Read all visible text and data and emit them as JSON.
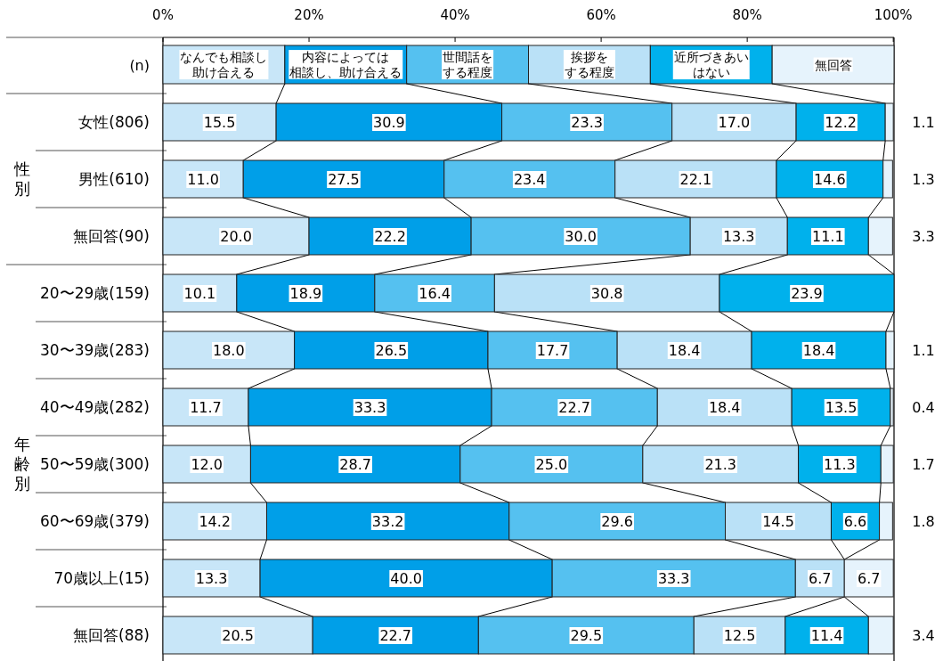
{
  "chart_data": {
    "type": "bar",
    "orientation": "horizontal",
    "stacked": true,
    "categories": [
      "女性(806)",
      "男性(610)",
      "無回答(90)",
      "20〜29歳(159)",
      "30〜39歳(283)",
      "40〜49歳(282)",
      "50〜59歳(300)",
      "60〜69歳(379)",
      "70歳以上(15)",
      "無回答(88)"
    ],
    "series": [
      {
        "name": "なんでも相談し助け合える",
        "color": "#c8e6f8",
        "values": [
          15.5,
          11.0,
          20.0,
          10.1,
          18.0,
          11.7,
          12.0,
          14.2,
          13.3,
          20.5
        ],
        "value_labels": [
          "15.5",
          "11.0",
          "20.0",
          "10.1",
          "18.0",
          "11.7",
          "12.0",
          "14.2",
          "13.3",
          "20.5"
        ]
      },
      {
        "name": "内容によっては相談し、助け合える",
        "color": "#009fe8",
        "values": [
          30.9,
          27.5,
          22.2,
          18.9,
          26.5,
          33.3,
          28.7,
          33.2,
          40.0,
          22.7
        ],
        "value_labels": [
          "30.9",
          "27.5",
          "22.2",
          "18.9",
          "26.5",
          "33.3",
          "28.7",
          "33.2",
          "40.0",
          "22.7"
        ]
      },
      {
        "name": "世間話をする程度",
        "color": "#55c1f0",
        "values": [
          23.3,
          23.4,
          30.0,
          16.4,
          17.7,
          22.7,
          25.0,
          29.6,
          33.3,
          29.5
        ],
        "value_labels": [
          "23.3",
          "23.4",
          "30.0",
          "16.4",
          "17.7",
          "22.7",
          "25.0",
          "29.6",
          "33.3",
          "29.5"
        ]
      },
      {
        "name": "挨拶をする程度",
        "color": "#bae1f7",
        "values": [
          17.0,
          22.1,
          13.3,
          30.8,
          18.4,
          18.4,
          21.3,
          14.5,
          6.7,
          12.5
        ],
        "value_labels": [
          "17.0",
          "22.1",
          "13.3",
          "30.8",
          "18.4",
          "18.4",
          "21.3",
          "14.5",
          "6.7",
          "12.5"
        ]
      },
      {
        "name": "近所づきあいはない",
        "color": "#00b1ec",
        "values": [
          12.2,
          14.6,
          11.1,
          23.9,
          18.4,
          13.5,
          11.3,
          6.6,
          null,
          11.4
        ],
        "value_labels": [
          "12.2",
          "14.6",
          "11.1",
          "23.9",
          "18.4",
          "13.5",
          "11.3",
          "6.6",
          null,
          "11.4"
        ]
      },
      {
        "name": "無回答",
        "color": "#e6f3fc",
        "values": [
          1.1,
          1.3,
          3.3,
          null,
          1.1,
          0.4,
          1.7,
          1.8,
          6.7,
          3.4
        ],
        "value_labels": [
          "1.1",
          "1.3",
          "3.3",
          null,
          "1.1",
          "0.4",
          "1.7",
          "1.8",
          "6.7",
          "3.4"
        ]
      }
    ],
    "xlim": [
      0,
      100.1
    ],
    "xticks": [
      {
        "value": 0,
        "label": "0%"
      },
      {
        "value": 20,
        "label": "20%"
      },
      {
        "value": 40,
        "label": "40%"
      },
      {
        "value": 60,
        "label": "60%"
      },
      {
        "value": 80,
        "label": "80%"
      },
      {
        "value": 100,
        "label": "100%"
      }
    ],
    "legend": "top",
    "annotations": [
      "(n)",
      "性別",
      "年齢別"
    ]
  }
}
